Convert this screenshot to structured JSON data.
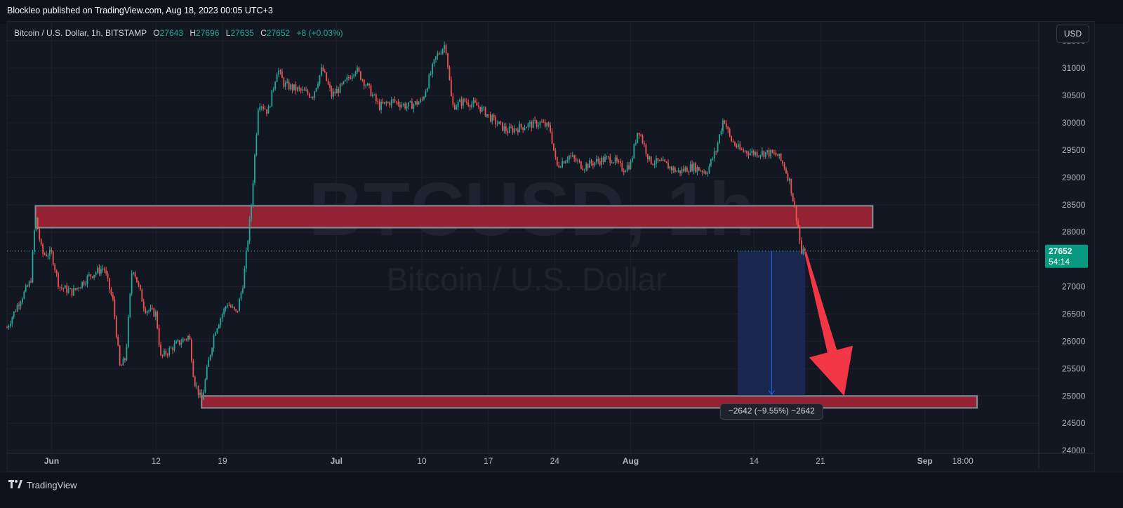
{
  "header": {
    "publish_text": "Blockleo published on TradingView.com, Aug 18, 2023 00:05 UTC+3"
  },
  "legend": {
    "symbol": "Bitcoin / U.S. Dollar, 1h, BITSTAMP",
    "open_label": "O",
    "open_value": "27643",
    "high_label": "H",
    "high_value": "27696",
    "low_label": "L",
    "low_value": "27635",
    "close_label": "C",
    "close_value": "27652",
    "change": "+8 (+0.03%)"
  },
  "currency_button": "USD",
  "watermark": {
    "ticker": "BTCUSD, 1h",
    "name": "Bitcoin / U.S. Dollar"
  },
  "price_badge": {
    "price": "27652",
    "countdown": "54:14"
  },
  "measure_label": "−2642 (−9.55%) −2642",
  "footer": {
    "brand": "TradingView"
  },
  "colors": {
    "background": "#131722",
    "up": "#26a69a",
    "down": "#ef5350",
    "zone_fill": "#9b2335",
    "measure_fill": "#1c2a55",
    "measure_line": "#2962ff",
    "arrow": "#f23645"
  },
  "chart_data": {
    "type": "candlestick",
    "symbol": "BTCUSD",
    "timeframe": "1h",
    "exchange": "BITSTAMP",
    "y_axis": {
      "ticks": [
        24000,
        24500,
        25000,
        25500,
        26000,
        26500,
        27000,
        27500,
        28000,
        28500,
        29000,
        29500,
        30000,
        30500,
        31000,
        31500
      ],
      "ylim": [
        23950,
        31850
      ]
    },
    "x_axis": {
      "labels": [
        "Jun",
        "12",
        "19",
        "Jul",
        "10",
        "17",
        "24",
        "Aug",
        "14",
        "21",
        "Sep",
        "18:00"
      ],
      "label_days": [
        31,
        42,
        49,
        61,
        70,
        77,
        84,
        92,
        105,
        112,
        123,
        127
      ],
      "label_weight": [
        "bold",
        "normal",
        "normal",
        "bold",
        "normal",
        "normal",
        "normal",
        "bold",
        "normal",
        "normal",
        "bold",
        "normal"
      ],
      "day_start": 26.3,
      "day_end": 135
    },
    "price_path": [
      [
        26.3,
        26250
      ],
      [
        27.5,
        26700
      ],
      [
        28.8,
        27100
      ],
      [
        29.3,
        28300
      ],
      [
        30.0,
        27600
      ],
      [
        31.0,
        27600
      ],
      [
        31.8,
        27000
      ],
      [
        33.2,
        26900
      ],
      [
        35.0,
        27200
      ],
      [
        36.5,
        27350
      ],
      [
        37.5,
        26700
      ],
      [
        38.2,
        25500
      ],
      [
        38.8,
        25700
      ],
      [
        39.5,
        27400
      ],
      [
        40.8,
        26600
      ],
      [
        42.0,
        26500
      ],
      [
        42.5,
        25700
      ],
      [
        43.8,
        25900
      ],
      [
        45.5,
        26100
      ],
      [
        46.0,
        25300
      ],
      [
        46.8,
        24900
      ],
      [
        47.5,
        25600
      ],
      [
        48.2,
        26200
      ],
      [
        49.5,
        26700
      ],
      [
        50.5,
        26500
      ],
      [
        51.2,
        27100
      ],
      [
        52.0,
        28400
      ],
      [
        52.8,
        30400
      ],
      [
        53.8,
        30200
      ],
      [
        54.8,
        31000
      ],
      [
        55.5,
        30700
      ],
      [
        57.0,
        30600
      ],
      [
        58.5,
        30500
      ],
      [
        59.5,
        31000
      ],
      [
        60.5,
        30500
      ],
      [
        61.8,
        30700
      ],
      [
        63.0,
        31000
      ],
      [
        64.5,
        30600
      ],
      [
        65.5,
        30300
      ],
      [
        67.0,
        30400
      ],
      [
        68.5,
        30300
      ],
      [
        70.0,
        30400
      ],
      [
        71.5,
        31200
      ],
      [
        72.5,
        31450
      ],
      [
        73.2,
        30300
      ],
      [
        74.5,
        30400
      ],
      [
        76.0,
        30300
      ],
      [
        77.5,
        30050
      ],
      [
        79.0,
        29850
      ],
      [
        81.0,
        29950
      ],
      [
        82.5,
        30000
      ],
      [
        83.5,
        29900
      ],
      [
        84.2,
        29200
      ],
      [
        85.5,
        29400
      ],
      [
        87.0,
        29200
      ],
      [
        88.5,
        29300
      ],
      [
        90.0,
        29350
      ],
      [
        91.2,
        29150
      ],
      [
        92.0,
        29250
      ],
      [
        92.8,
        29900
      ],
      [
        94.0,
        29300
      ],
      [
        95.5,
        29250
      ],
      [
        97.0,
        29100
      ],
      [
        98.5,
        29200
      ],
      [
        100.0,
        29100
      ],
      [
        101.0,
        29500
      ],
      [
        101.8,
        30100
      ],
      [
        102.5,
        29700
      ],
      [
        103.5,
        29500
      ],
      [
        105.0,
        29450
      ],
      [
        106.5,
        29450
      ],
      [
        107.5,
        29400
      ],
      [
        108.2,
        29200
      ],
      [
        108.8,
        28900
      ],
      [
        109.2,
        28500
      ],
      [
        109.6,
        28150
      ],
      [
        110.0,
        27600
      ],
      [
        110.4,
        27652
      ]
    ],
    "last_price": 27652,
    "zones": [
      {
        "name": "resistance-zone",
        "x_start": 29.3,
        "x_end": 117.5,
        "y_low": 28080,
        "y_high": 28480
      },
      {
        "name": "support-zone",
        "x_start": 46.8,
        "x_end": 128.5,
        "y_low": 24780,
        "y_high": 25000
      }
    ],
    "measure": {
      "x_start": 103.3,
      "x_end": 110.4,
      "from_price": 27652,
      "to_price": 25010,
      "change": -2642,
      "change_pct": -9.55
    },
    "forecast_arrow": {
      "from": [
        110.4,
        27640
      ],
      "to": [
        114.5,
        25000
      ]
    },
    "grid": true,
    "legend": "none"
  }
}
